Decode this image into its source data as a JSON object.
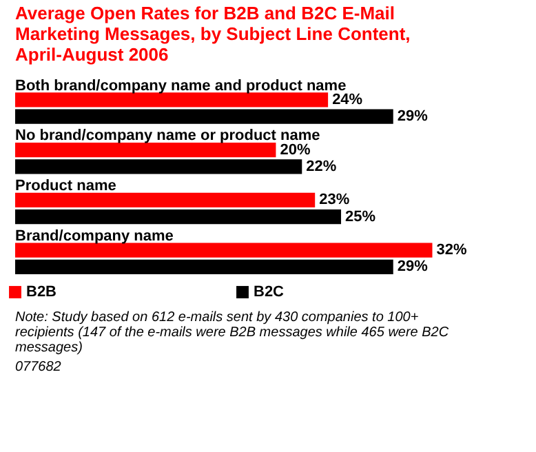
{
  "chart_data": {
    "type": "bar",
    "orientation": "horizontal",
    "title": "Average Open Rates for B2B and B2C E-Mail Marketing Messages, by Subject Line Content, April-August 2006",
    "categories": [
      "Both brand/company name and product name",
      "No brand/company name or product name",
      "Product name",
      "Brand/company name"
    ],
    "series": [
      {
        "name": "B2B",
        "color": "#ff0000",
        "values": [
          24,
          20,
          23,
          32
        ],
        "value_labels": [
          "24%",
          "20%",
          "23%",
          "32%"
        ]
      },
      {
        "name": "B2C",
        "color": "#000000",
        "values": [
          29,
          22,
          25,
          29
        ],
        "value_labels": [
          "29%",
          "22%",
          "25%",
          "29%"
        ]
      }
    ],
    "legend": "bottom",
    "annotations": [
      "Note: Study based on 612 e-mails sent by 430 companies to 100+ recipients (147 of the e-mails were B2B messages while 465 were B2C messages)",
      "077682"
    ]
  }
}
